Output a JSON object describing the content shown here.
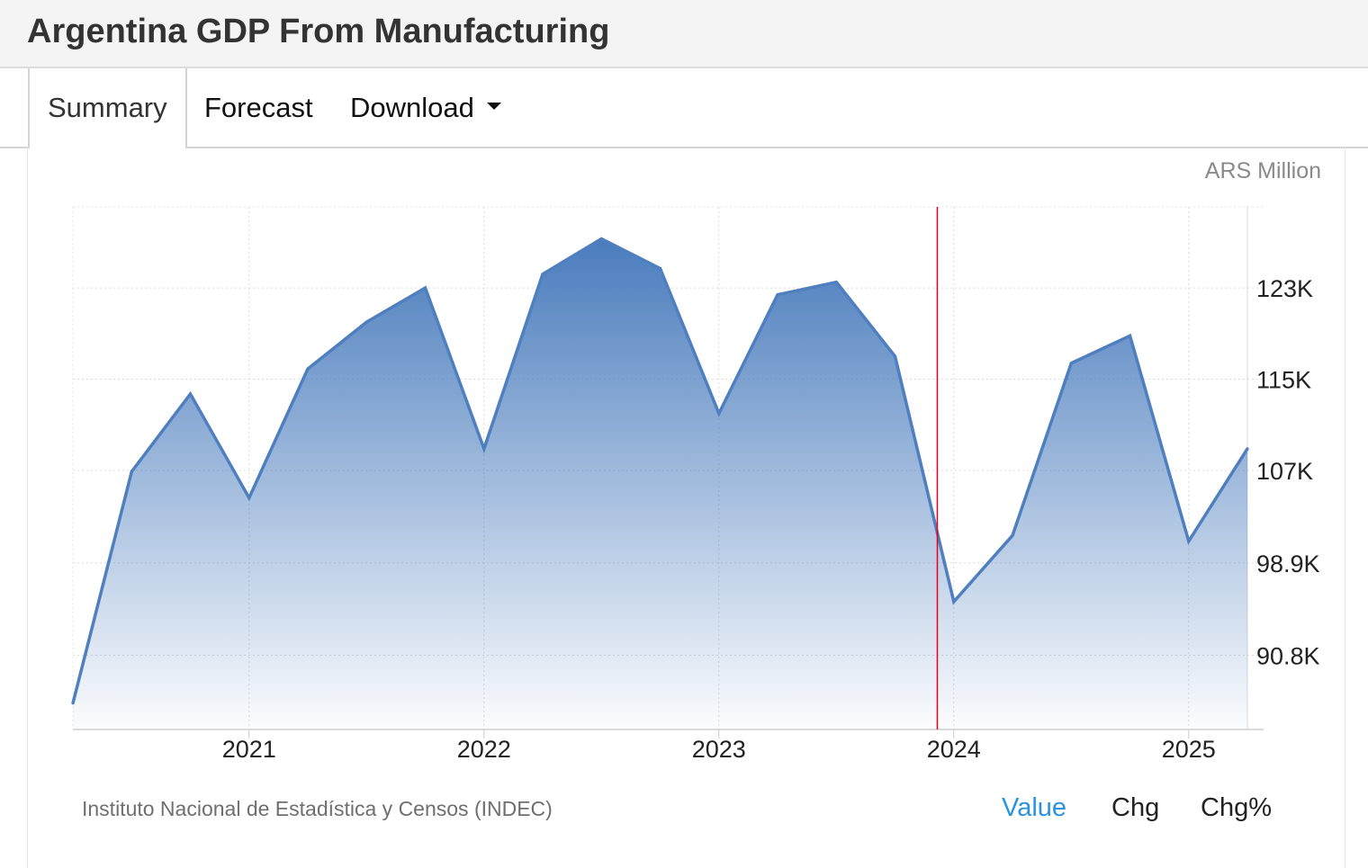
{
  "page": {
    "title": "Argentina GDP From Manufacturing"
  },
  "tabs": [
    {
      "label": "Summary"
    },
    {
      "label": "Forecast"
    },
    {
      "label": "Download"
    }
  ],
  "unit": "ARS Million",
  "source": "Instituto Nacional de Estadística y Censos (INDEC)",
  "modes": [
    {
      "label": "Value"
    },
    {
      "label": "Chg"
    },
    {
      "label": "Chg%"
    }
  ],
  "colors": {
    "line": "#4f7fbf",
    "fill_top": "#4f7fbf",
    "active_mode": "#2a93e0",
    "marker": "#e8001e"
  },
  "chart_data": {
    "type": "area",
    "title": "Argentina GDP From Manufacturing",
    "ylabel": "ARS Million",
    "xlabel": "",
    "x": [
      2020.25,
      2020.5,
      2020.75,
      2021.0,
      2021.25,
      2021.5,
      2021.75,
      2022.0,
      2022.25,
      2022.5,
      2022.75,
      2023.0,
      2023.25,
      2023.5,
      2023.75,
      2024.0,
      2024.25,
      2024.5,
      2024.75,
      2025.0,
      2025.25
    ],
    "series": [
      {
        "name": "GDP From Manufacturing",
        "values": [
          86600,
          106900,
          113700,
          104600,
          115900,
          120000,
          123000,
          108900,
          124200,
          127300,
          124700,
          112000,
          122400,
          123500,
          117000,
          95500,
          101300,
          116400,
          118800,
          100800,
          108900
        ]
      }
    ],
    "xticks": [
      2021,
      2022,
      2023,
      2024,
      2025
    ],
    "xtick_labels": [
      "2021",
      "2022",
      "2023",
      "2024",
      "2025"
    ],
    "yticks": [
      90800,
      98900,
      107000,
      115000,
      123000
    ],
    "ytick_labels": [
      "90.8K",
      "98.9K",
      "107K",
      "115K",
      "123K"
    ],
    "xlim": [
      2020.25,
      2025.25
    ],
    "ylim": [
      84300,
      130100
    ],
    "current_marker_x": 2023.93,
    "grid": true,
    "legend": "none"
  }
}
